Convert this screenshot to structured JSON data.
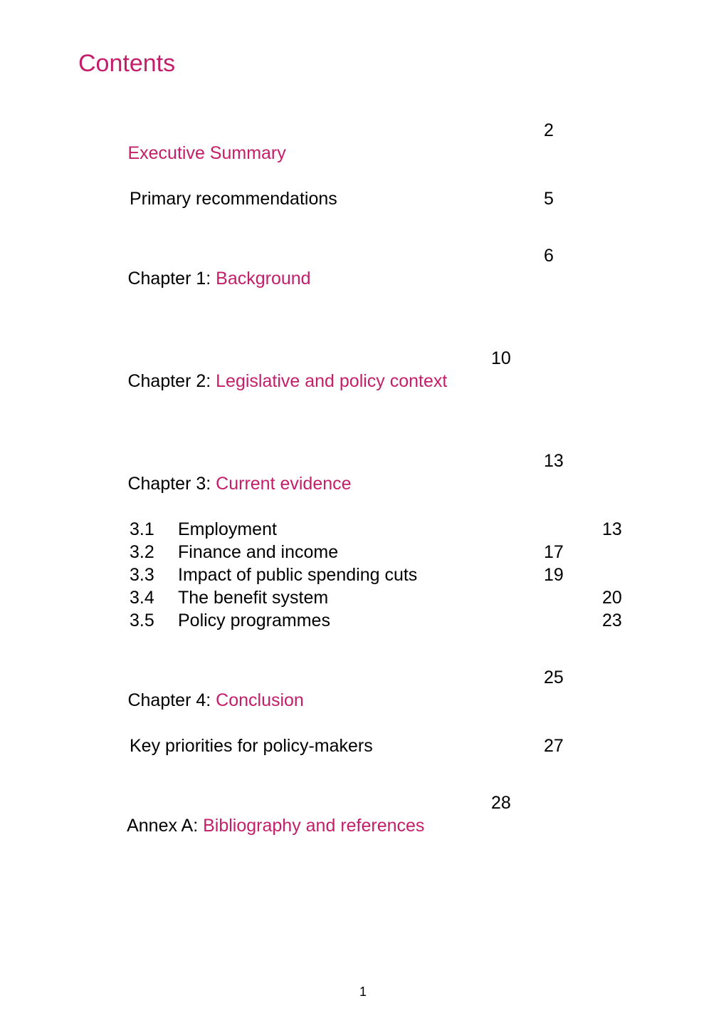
{
  "colors": {
    "accent": "#c41e6a",
    "text": "#000000",
    "background": "#ffffff"
  },
  "typography": {
    "title_fontsize_pt": 26,
    "body_fontsize_pt": 19,
    "footer_fontsize_pt": 14,
    "family": "Arial"
  },
  "page": {
    "title": "Contents",
    "footer_number": "1"
  },
  "toc": [
    {
      "prefix": "",
      "linked": "Executive Summary",
      "page": "2",
      "page_col": "b",
      "sub": [
        {
          "label": "Primary recommendations",
          "page": "5",
          "page_col": "b"
        }
      ]
    },
    {
      "prefix": "Chapter 1: ",
      "linked": "Background",
      "page": "6",
      "page_col": "b",
      "sub": []
    },
    {
      "prefix": "Chapter 2: ",
      "linked": "Legislative and policy context",
      "page": "10",
      "page_col": "a",
      "sub": []
    },
    {
      "prefix": "Chapter 3: ",
      "linked": "Current evidence",
      "page": "13",
      "page_col": "b",
      "sub": [
        {
          "num": "3.1",
          "label": "Employment",
          "page": "13",
          "page_col": "c"
        },
        {
          "num": "3.2",
          "label": "Finance and income",
          "page": "17",
          "page_col": "b"
        },
        {
          "num": "3.3",
          "label": "Impact of public spending cuts",
          "page": "19",
          "page_col": "b"
        },
        {
          "num": "3.4",
          "label": "The benefit system",
          "page": "20",
          "page_col": "c"
        },
        {
          "num": "3.5",
          "label": "Policy programmes",
          "page": "23",
          "page_col": "c"
        }
      ]
    },
    {
      "prefix": "Chapter 4: ",
      "linked": "Conclusion",
      "page": "25",
      "page_col": "b",
      "sub": [
        {
          "label": "Key priorities for policy-makers",
          "page": "27",
          "page_col": "b"
        }
      ]
    },
    {
      "prefix": "Annex A: ",
      "linked": "Bibliography and references",
      "page": "28",
      "page_col": "a",
      "sub": []
    }
  ]
}
